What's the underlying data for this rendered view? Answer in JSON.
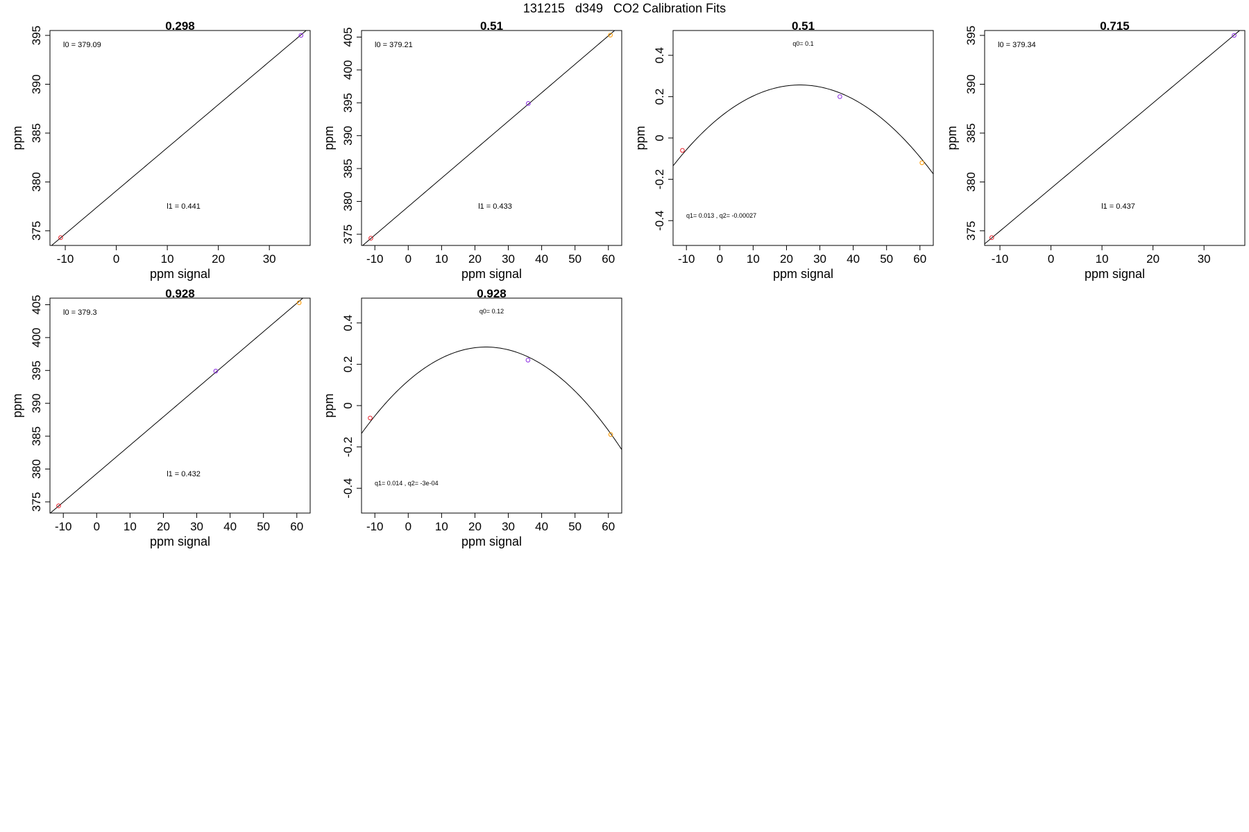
{
  "page_title": "131215   d349   CO2 Calibration Fits",
  "colors": {
    "frame": "#000000",
    "fit_line": "#000000"
  },
  "chart_data": [
    {
      "type": "scatter",
      "fit": "linear",
      "title": "0.298",
      "xlabel": "ppm signal",
      "ylabel": "ppm",
      "xlim": [
        -13,
        38
      ],
      "ylim": [
        373.5,
        395.5
      ],
      "xticks": [
        -10,
        0,
        10,
        20,
        30
      ],
      "yticks": [
        375,
        380,
        385,
        390,
        395
      ],
      "fit_params": {
        "intercept": 379.09,
        "slope": 0.441
      },
      "annotations": [
        "l0 =  379.09",
        "l1 =  0.441"
      ],
      "points": [
        {
          "x": -10.9,
          "y": 374.3,
          "color": "#e8212b"
        },
        {
          "x": 36.2,
          "y": 395.0,
          "color": "#8a2be2"
        }
      ]
    },
    {
      "type": "scatter",
      "fit": "linear",
      "title": "0.51",
      "xlabel": "ppm signal",
      "ylabel": "ppm",
      "xlim": [
        -14,
        64
      ],
      "ylim": [
        373.3,
        406
      ],
      "xticks": [
        -10,
        0,
        10,
        20,
        30,
        40,
        50,
        60
      ],
      "yticks": [
        375,
        380,
        385,
        390,
        395,
        400,
        405
      ],
      "fit_params": {
        "intercept": 379.21,
        "slope": 0.433
      },
      "annotations": [
        "l0 =  379.21",
        "l1 =  0.433"
      ],
      "points": [
        {
          "x": -11.2,
          "y": 374.4,
          "color": "#e8212b"
        },
        {
          "x": 36.0,
          "y": 394.9,
          "color": "#8a2be2"
        },
        {
          "x": 60.6,
          "y": 405.3,
          "color": "#ff9900"
        }
      ]
    },
    {
      "type": "scatter",
      "fit": "quadratic",
      "title": "0.51",
      "xlabel": "ppm signal",
      "ylabel": "ppm",
      "xlim": [
        -14,
        64
      ],
      "ylim": [
        -0.52,
        0.52
      ],
      "xticks": [
        -10,
        0,
        10,
        20,
        30,
        40,
        50,
        60
      ],
      "yticks": [
        -0.4,
        -0.2,
        0.0,
        0.2,
        0.4
      ],
      "fit_params": {
        "q0": 0.1,
        "q1": 0.013,
        "q2": -0.00027
      },
      "annotations": [
        "q0= 0.1",
        "q1= 0.013 , q2= -0.00027"
      ],
      "points": [
        {
          "x": -11.2,
          "y": -0.06,
          "color": "#e8212b"
        },
        {
          "x": 36.0,
          "y": 0.2,
          "color": "#8a2be2"
        },
        {
          "x": 60.6,
          "y": -0.12,
          "color": "#ff9900"
        }
      ]
    },
    {
      "type": "scatter",
      "fit": "linear",
      "title": "0.715",
      "xlabel": "ppm signal",
      "ylabel": "ppm",
      "xlim": [
        -13,
        38
      ],
      "ylim": [
        373.5,
        395.5
      ],
      "xticks": [
        -10,
        0,
        10,
        20,
        30
      ],
      "yticks": [
        375,
        380,
        385,
        390,
        395
      ],
      "fit_params": {
        "intercept": 379.34,
        "slope": 0.437
      },
      "annotations": [
        "l0 =  379.34",
        "l1 =  0.437"
      ],
      "points": [
        {
          "x": -11.6,
          "y": 374.3,
          "color": "#e8212b"
        },
        {
          "x": 35.9,
          "y": 395.0,
          "color": "#8a2be2"
        }
      ]
    },
    {
      "type": "scatter",
      "fit": "linear",
      "title": "0.928",
      "xlabel": "ppm signal",
      "ylabel": "ppm",
      "xlim": [
        -14,
        64
      ],
      "ylim": [
        373.3,
        406
      ],
      "xticks": [
        -10,
        0,
        10,
        20,
        30,
        40,
        50,
        60
      ],
      "yticks": [
        375,
        380,
        385,
        390,
        395,
        400,
        405
      ],
      "fit_params": {
        "intercept": 379.3,
        "slope": 0.432
      },
      "annotations": [
        "l0 =  379.3",
        "l1 =  0.432"
      ],
      "points": [
        {
          "x": -11.4,
          "y": 374.4,
          "color": "#e8212b"
        },
        {
          "x": 35.7,
          "y": 394.9,
          "color": "#8a2be2"
        },
        {
          "x": 60.7,
          "y": 405.3,
          "color": "#ff9900"
        }
      ]
    },
    {
      "type": "scatter",
      "fit": "quadratic",
      "title": "0.928",
      "xlabel": "ppm signal",
      "ylabel": "ppm",
      "xlim": [
        -14,
        64
      ],
      "ylim": [
        -0.52,
        0.52
      ],
      "xticks": [
        -10,
        0,
        10,
        20,
        30,
        40,
        50,
        60
      ],
      "yticks": [
        -0.4,
        -0.2,
        0.0,
        0.2,
        0.4
      ],
      "fit_params": {
        "q0": 0.12,
        "q1": 0.014,
        "q2": -0.0003
      },
      "annotations": [
        "q0= 0.12",
        "q1= 0.014 , q2= -3e-04"
      ],
      "points": [
        {
          "x": -11.4,
          "y": -0.06,
          "color": "#e8212b"
        },
        {
          "x": 35.9,
          "y": 0.22,
          "color": "#8a2be2"
        },
        {
          "x": 60.7,
          "y": -0.14,
          "color": "#ff9900"
        }
      ]
    }
  ]
}
